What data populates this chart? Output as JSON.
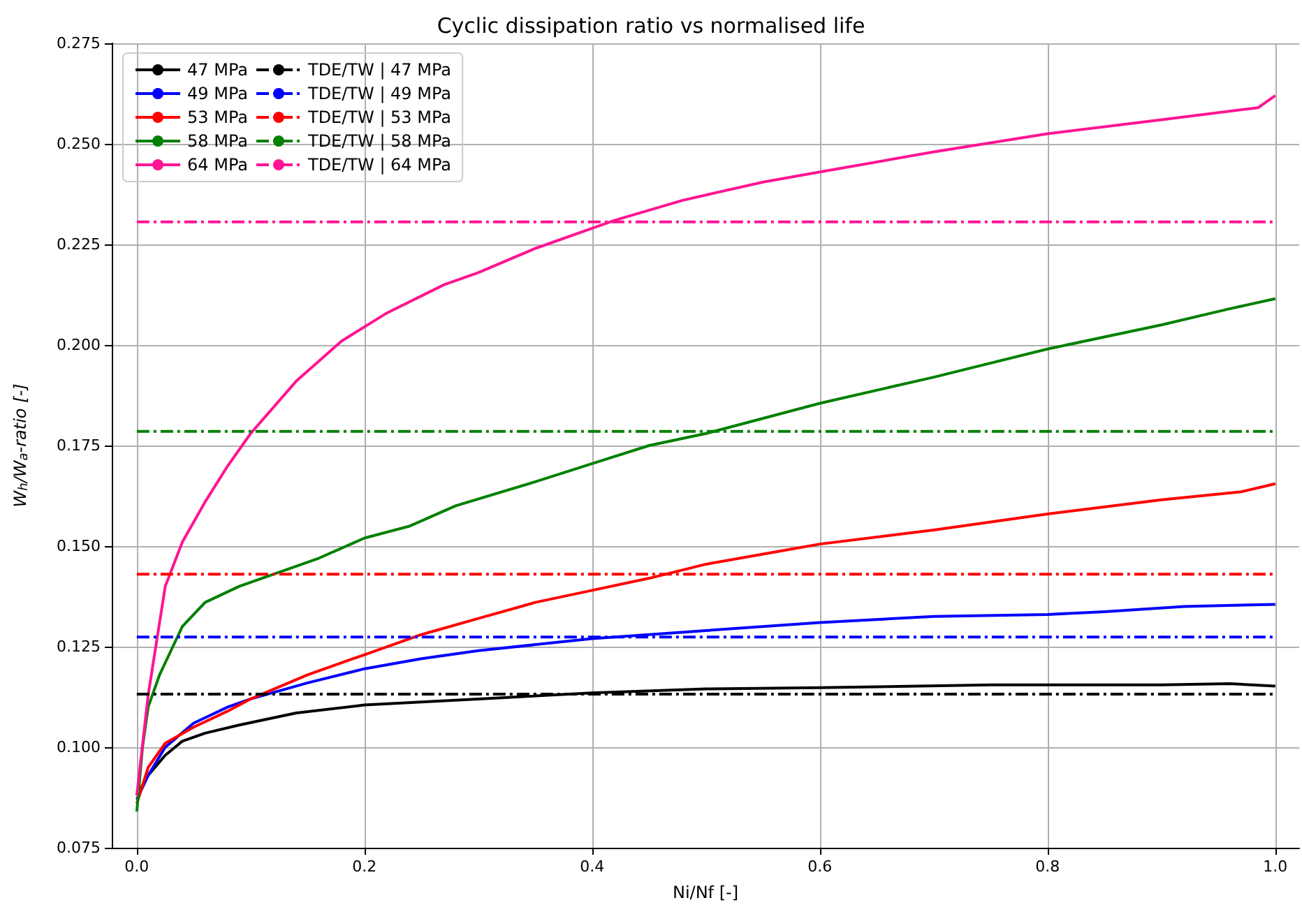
{
  "chart_data": {
    "type": "line",
    "title": "Cyclic dissipation ratio vs normalised life",
    "xlabel": "Ni/Nf [-]",
    "ylabel": "W$_{h}$/W$_{a}$-ratio [-]",
    "xlim": [
      -0.022,
      1.021
    ],
    "ylim": [
      0.075,
      0.275
    ],
    "xticks": [
      {
        "value": 0,
        "label": "0.0"
      },
      {
        "value": 0.2,
        "label": "0.2"
      },
      {
        "value": 0.4,
        "label": "0.4"
      },
      {
        "value": 0.6,
        "label": "0.6"
      },
      {
        "value": 0.8,
        "label": "0.8"
      },
      {
        "value": 1,
        "label": "1.0"
      }
    ],
    "yticks": [
      {
        "value": 0.075,
        "label": "0.075"
      },
      {
        "value": 0.1,
        "label": "0.100"
      },
      {
        "value": 0.125,
        "label": "0.125"
      },
      {
        "value": 0.15,
        "label": "0.150"
      },
      {
        "value": 0.175,
        "label": "0.175"
      },
      {
        "value": 0.2,
        "label": "0.200"
      },
      {
        "value": 0.225,
        "label": "0.225"
      },
      {
        "value": 0.25,
        "label": "0.250"
      },
      {
        "value": 0.275,
        "label": "0.275"
      }
    ],
    "grid": true,
    "legend": "top left",
    "marker": "none",
    "line_style": "solid",
    "series": [
      {
        "name": "47 MPa",
        "color": "#000000",
        "x": [
          0,
          0.01,
          0.025,
          0.04,
          0.06,
          0.09,
          0.14,
          0.2,
          0.3,
          0.4,
          0.5,
          0.6,
          0.75,
          0.9,
          0.96,
          1.0
        ],
        "values": [
          0.088,
          0.093,
          0.098,
          0.1015,
          0.1035,
          0.1055,
          0.1085,
          0.1105,
          0.112,
          0.1135,
          0.1145,
          0.1148,
          0.1155,
          0.1155,
          0.1158,
          0.1152
        ]
      },
      {
        "name": "49 MPa",
        "color": "#0000ff",
        "x": [
          0,
          0.01,
          0.025,
          0.05,
          0.08,
          0.1,
          0.15,
          0.2,
          0.25,
          0.3,
          0.4,
          0.5,
          0.6,
          0.7,
          0.8,
          0.85,
          0.92,
          1.0
        ],
        "values": [
          0.087,
          0.093,
          0.1,
          0.106,
          0.11,
          0.112,
          0.116,
          0.1195,
          0.122,
          0.124,
          0.127,
          0.129,
          0.131,
          0.1325,
          0.133,
          0.1337,
          0.135,
          0.1355
        ]
      },
      {
        "name": "53 MPa",
        "color": "#ff0000",
        "x": [
          0,
          0.01,
          0.025,
          0.05,
          0.08,
          0.1,
          0.15,
          0.2,
          0.25,
          0.3,
          0.35,
          0.4,
          0.45,
          0.5,
          0.55,
          0.6,
          0.7,
          0.8,
          0.9,
          0.97,
          1.0
        ],
        "values": [
          0.086,
          0.095,
          0.101,
          0.105,
          0.109,
          0.112,
          0.118,
          0.123,
          0.128,
          0.132,
          0.136,
          0.139,
          0.142,
          0.1455,
          0.148,
          0.1505,
          0.154,
          0.158,
          0.1615,
          0.1635,
          0.1655
        ]
      },
      {
        "name": "58 MPa",
        "color": "#008000",
        "x": [
          0,
          0.005,
          0.01,
          0.02,
          0.03,
          0.04,
          0.06,
          0.09,
          0.12,
          0.16,
          0.2,
          0.24,
          0.28,
          0.35,
          0.4,
          0.45,
          0.5,
          0.6,
          0.7,
          0.8,
          0.9,
          0.96,
          1.0
        ],
        "values": [
          0.084,
          0.1,
          0.11,
          0.118,
          0.124,
          0.13,
          0.136,
          0.14,
          0.143,
          0.147,
          0.152,
          0.155,
          0.16,
          0.166,
          0.1705,
          0.175,
          0.178,
          0.1855,
          0.192,
          0.199,
          0.205,
          0.209,
          0.2115
        ]
      },
      {
        "name": "64 MPa",
        "color": "#ff1493",
        "x": [
          0,
          0.01,
          0.025,
          0.04,
          0.06,
          0.08,
          0.1,
          0.14,
          0.18,
          0.22,
          0.27,
          0.3,
          0.35,
          0.4,
          0.42,
          0.48,
          0.55,
          0.6,
          0.7,
          0.8,
          0.9,
          0.985,
          1.0
        ],
        "values": [
          0.088,
          0.113,
          0.14,
          0.151,
          0.161,
          0.17,
          0.178,
          0.191,
          0.201,
          0.208,
          0.215,
          0.218,
          0.224,
          0.229,
          0.231,
          0.236,
          0.2405,
          0.243,
          0.248,
          0.2525,
          0.256,
          0.259,
          0.262
        ]
      },
      {
        "name": "TDE/TW | 47 MPa",
        "color": "#000000",
        "line_style": "dashed",
        "x": [
          0,
          1
        ],
        "values": [
          0.1132,
          0.1132
        ]
      },
      {
        "name": "TDE/TW | 49 MPa",
        "color": "#0000ff",
        "line_style": "dashed",
        "x": [
          0,
          1
        ],
        "values": [
          0.1274,
          0.1274
        ]
      },
      {
        "name": "TDE/TW | 53 MPa",
        "color": "#ff0000",
        "line_style": "dashed",
        "x": [
          0,
          1
        ],
        "values": [
          0.143,
          0.143
        ]
      },
      {
        "name": "TDE/TW | 58 MPa",
        "color": "#008000",
        "line_style": "dashed",
        "x": [
          0,
          1
        ],
        "values": [
          0.1785,
          0.1785
        ]
      },
      {
        "name": "TDE/TW | 64 MPa",
        "color": "#ff1493",
        "line_style": "dashed",
        "x": [
          0,
          1
        ],
        "values": [
          0.2306,
          0.2306
        ]
      }
    ]
  }
}
